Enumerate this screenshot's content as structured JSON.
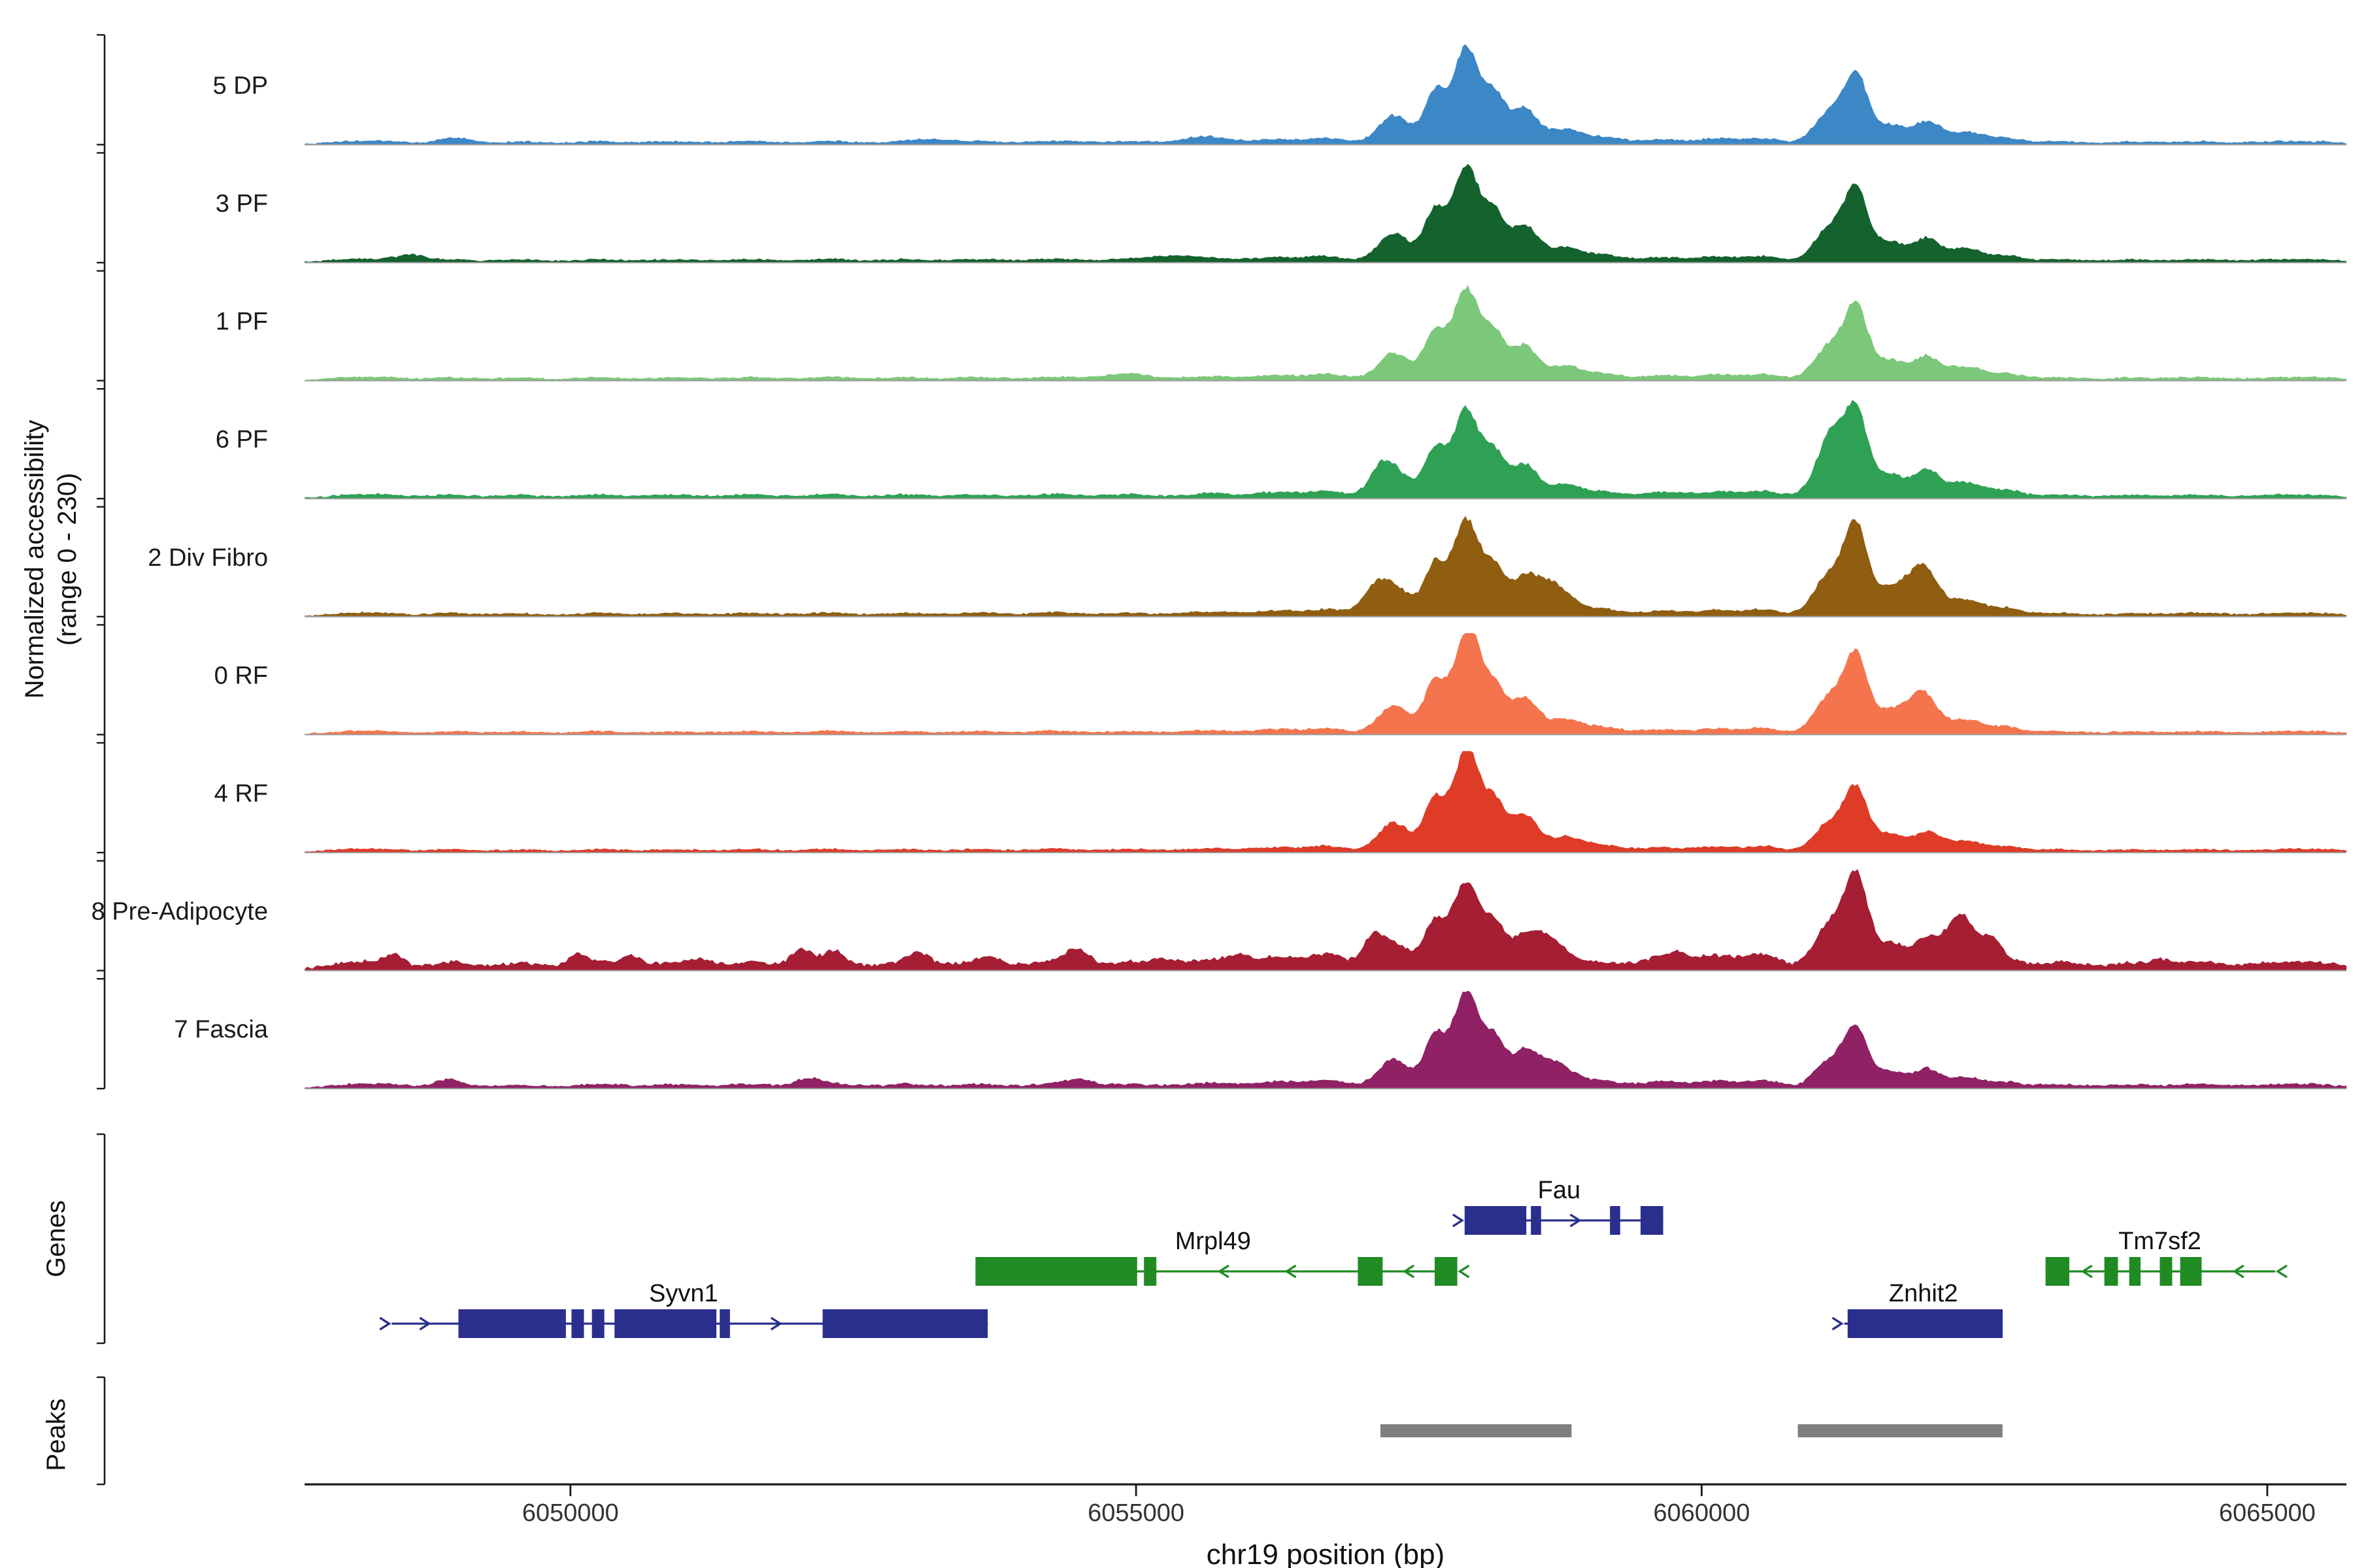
{
  "figure": {
    "ylabel_line1": "Normalized accessibility",
    "ylabel_line2": "(range 0 - 230)",
    "genes_label": "Genes",
    "peaks_label": "Peaks",
    "xlabel": "chr19 position (bp)",
    "background": "#ffffff"
  },
  "chart_data": {
    "type": "area",
    "title": "",
    "xlabel": "chr19 position (bp)",
    "ylabel": "Normalized accessibility (range 0 - 230)",
    "x_domain_bp": [
      6047650,
      6065700
    ],
    "x_ticks": [
      6050000,
      6055000,
      6060000,
      6065000
    ],
    "y_range": [
      0,
      230
    ],
    "colors": {
      "baseline": "#9b9b9b",
      "axis": "#1a1a1a",
      "tick_label": "#333333",
      "peak_bar": "#7f7f7f",
      "gene_navy": "#2A2E8C",
      "gene_green": "#208B22"
    },
    "cluster_a": [
      [
        6057280,
        140,
        0.3
      ],
      [
        6057640,
        95,
        0.52
      ],
      [
        6057920,
        115,
        1.0
      ],
      [
        6058170,
        90,
        0.46
      ],
      [
        6058430,
        120,
        0.38
      ],
      [
        6058790,
        140,
        0.15
      ],
      [
        6059130,
        160,
        0.07
      ]
    ],
    "cluster_b": [
      [
        6061140,
        140,
        0.52
      ],
      [
        6061370,
        100,
        1.0
      ],
      [
        6061660,
        130,
        0.3
      ],
      [
        6061990,
        120,
        0.34
      ],
      [
        6062340,
        150,
        0.2
      ],
      [
        6062700,
        130,
        0.09
      ]
    ],
    "noise_bumps": [
      [
        6048000,
        180,
        0.022
      ],
      [
        6048350,
        200,
        0.03
      ],
      [
        6048950,
        170,
        0.03
      ],
      [
        6049550,
        220,
        0.025
      ],
      [
        6050250,
        200,
        0.03
      ],
      [
        6050900,
        240,
        0.028
      ],
      [
        6051600,
        230,
        0.03
      ],
      [
        6052300,
        210,
        0.035
      ],
      [
        6052950,
        200,
        0.03
      ],
      [
        6053600,
        240,
        0.03
      ],
      [
        6054300,
        230,
        0.035
      ],
      [
        6054950,
        210,
        0.03
      ],
      [
        6055650,
        240,
        0.04
      ],
      [
        6056250,
        200,
        0.05
      ],
      [
        6056700,
        160,
        0.06
      ],
      [
        6059650,
        200,
        0.05
      ],
      [
        6060150,
        170,
        0.055
      ],
      [
        6060550,
        150,
        0.06
      ],
      [
        6063150,
        220,
        0.03
      ],
      [
        6063800,
        200,
        0.025
      ],
      [
        6064400,
        240,
        0.03
      ],
      [
        6065100,
        220,
        0.028
      ],
      [
        6065500,
        180,
        0.022
      ]
    ],
    "tracks": [
      {
        "label": "5 DP",
        "color": "#3C87C6",
        "a": 1.0,
        "b": 0.66,
        "noise": 1.0,
        "extra": [
          [
            6049000,
            130,
            0.04
          ],
          [
            6053200,
            150,
            0.035
          ],
          [
            6055600,
            180,
            0.045
          ]
        ]
      },
      {
        "label": "3 PF",
        "color": "#14632E",
        "a": 1.0,
        "b": 0.7,
        "noise": 1.0,
        "extra": [
          [
            6048600,
            120,
            0.06
          ],
          [
            6055300,
            180,
            0.05
          ]
        ]
      },
      {
        "label": "1 PF",
        "color": "#7CC87A",
        "a": 0.95,
        "b": 0.7,
        "noise": 1.0,
        "extra": [
          [
            6054900,
            200,
            0.04
          ]
        ]
      },
      {
        "label": "6 PF",
        "color": "#2FA154",
        "a": 0.92,
        "b": 0.82,
        "noise": 1.2,
        "extra": [
          [
            6057150,
            100,
            0.18
          ],
          [
            6061150,
            100,
            0.25
          ]
        ]
      },
      {
        "label": "2 Div Fibro",
        "color": "#8F5E10",
        "a": 1.0,
        "b": 0.86,
        "noise": 1.1,
        "extra": [
          [
            6057100,
            110,
            0.2
          ],
          [
            6058650,
            120,
            0.22
          ],
          [
            6061900,
            130,
            0.25
          ]
        ]
      },
      {
        "label": "0 RF",
        "color": "#F4754D",
        "a": 1.0,
        "b": 0.76,
        "noise": 1.0,
        "extra": [
          [
            6058000,
            60,
            0.15
          ],
          [
            6061900,
            120,
            0.2
          ]
        ]
      },
      {
        "label": "4 RF",
        "color": "#DE3C27",
        "a": 1.02,
        "b": 0.6,
        "noise": 1.0,
        "extra": [
          [
            6057950,
            70,
            0.1
          ]
        ]
      },
      {
        "label": "8 Pre-Adipocyte",
        "color": "#A61E33",
        "a": 0.92,
        "b": 0.9,
        "noise": 2.5,
        "extra": [
          [
            6048450,
            70,
            0.1
          ],
          [
            6050050,
            80,
            0.11
          ],
          [
            6050530,
            80,
            0.09
          ],
          [
            6051150,
            90,
            0.05
          ],
          [
            6052040,
            90,
            0.16
          ],
          [
            6052330,
            80,
            0.11
          ],
          [
            6053080,
            90,
            0.12
          ],
          [
            6053700,
            90,
            0.06
          ],
          [
            6054480,
            100,
            0.15
          ],
          [
            6055250,
            110,
            0.06
          ],
          [
            6055900,
            100,
            0.07
          ],
          [
            6057080,
            90,
            0.25
          ],
          [
            6058640,
            100,
            0.22
          ],
          [
            6059800,
            100,
            0.07
          ],
          [
            6062280,
            110,
            0.4
          ],
          [
            6062560,
            90,
            0.22
          ],
          [
            6064050,
            80,
            0.05
          ]
        ]
      },
      {
        "label": "7 Fascia",
        "color": "#8F2164",
        "a": 1.0,
        "b": 0.56,
        "noise": 1.3,
        "extra": [
          [
            6048900,
            100,
            0.05
          ],
          [
            6052100,
            110,
            0.07
          ],
          [
            6054500,
            120,
            0.06
          ],
          [
            6058650,
            110,
            0.15
          ]
        ]
      }
    ],
    "genes": [
      {
        "name": "Syvn1",
        "color_key": "gene_navy",
        "strand": "+",
        "row": 2,
        "start": 6048420,
        "end": 6053690,
        "label_bp": 6051000,
        "exons": [
          [
            6049010,
            6049960
          ],
          [
            6050010,
            6050120
          ],
          [
            6050190,
            6050300
          ],
          [
            6050390,
            6051290
          ],
          [
            6051320,
            6051410
          ],
          [
            6052230,
            6053690
          ]
        ]
      },
      {
        "name": "Mrpl49",
        "color_key": "gene_green",
        "strand": "-",
        "row": 1,
        "start": 6053580,
        "end": 6057840,
        "label_bp": 6055680,
        "exons": [
          [
            6053580,
            6055010
          ],
          [
            6055070,
            6055180
          ],
          [
            6056960,
            6057180
          ],
          [
            6057640,
            6057840
          ]
        ]
      },
      {
        "name": "Fau",
        "color_key": "gene_navy",
        "strand": "+",
        "row": 0,
        "start": 6057905,
        "end": 6059660,
        "label_bp": 6058740,
        "exons": [
          [
            6057905,
            6058450
          ],
          [
            6058490,
            6058580
          ],
          [
            6059190,
            6059280
          ],
          [
            6059460,
            6059660
          ]
        ]
      },
      {
        "name": "Znhit2",
        "color_key": "gene_navy",
        "strand": "+",
        "row": 2,
        "start": 6061260,
        "end": 6062660,
        "label_bp": 6061960,
        "exons": [
          [
            6061290,
            6062660
          ]
        ]
      },
      {
        "name": "Tm7sf2",
        "color_key": "gene_green",
        "strand": "-",
        "row": 1,
        "start": 6063040,
        "end": 6065070,
        "label_bp": 6064050,
        "exons": [
          [
            6063040,
            6063250
          ],
          [
            6063560,
            6063680
          ],
          [
            6063780,
            6063880
          ],
          [
            6064050,
            6064160
          ],
          [
            6064230,
            6064420
          ]
        ]
      }
    ],
    "peak_regions": [
      [
        6057160,
        6058850
      ],
      [
        6060850,
        6062660
      ]
    ]
  }
}
